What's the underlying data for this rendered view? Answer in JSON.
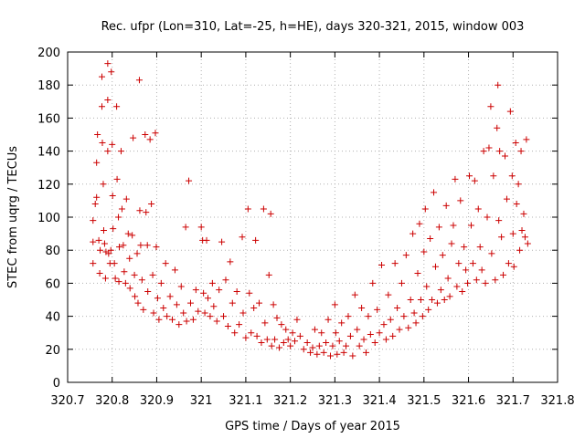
{
  "chart_data": {
    "type": "scatter",
    "title": "Rec. ufpr (Lon=310, Lat=-25, h=HE), days 320-321, 2015, window 003",
    "xlabel": "GPS time / Days of year 2015",
    "ylabel": "STEC from uqrg / TECUs",
    "xlim": [
      320.7,
      321.8
    ],
    "ylim": [
      0,
      200
    ],
    "x_ticks": [
      "320.7",
      "320.8",
      "320.9",
      "321",
      "321.1",
      "321.2",
      "321.3",
      "321.4",
      "321.5",
      "321.6",
      "321.7",
      "321.8"
    ],
    "x_tick_values": [
      320.7,
      320.8,
      320.9,
      321.0,
      321.1,
      321.2,
      321.3,
      321.4,
      321.5,
      321.6,
      321.7,
      321.8
    ],
    "y_ticks": [
      "0",
      "20",
      "40",
      "60",
      "80",
      "100",
      "120",
      "140",
      "160",
      "180",
      "200"
    ],
    "y_tick_values": [
      0,
      20,
      40,
      60,
      80,
      100,
      120,
      140,
      160,
      180,
      200
    ],
    "grid": true,
    "marker": "plus",
    "color": "#cc0000",
    "series": [
      {
        "points": [
          [
            320.757,
            72
          ],
          [
            320.757,
            85
          ],
          [
            320.757,
            98
          ],
          [
            320.762,
            108
          ],
          [
            320.765,
            112
          ],
          [
            320.765,
            133
          ],
          [
            320.767,
            150
          ],
          [
            320.77,
            86
          ],
          [
            320.772,
            66
          ],
          [
            320.773,
            80
          ],
          [
            320.777,
            167
          ],
          [
            320.777,
            185
          ],
          [
            320.778,
            145
          ],
          [
            320.78,
            120
          ],
          [
            320.781,
            92
          ],
          [
            320.783,
            84
          ],
          [
            320.785,
            63
          ],
          [
            320.786,
            79
          ],
          [
            320.79,
            193
          ],
          [
            320.79,
            171
          ],
          [
            320.79,
            140
          ],
          [
            320.792,
            78
          ],
          [
            320.795,
            72
          ],
          [
            320.797,
            80
          ],
          [
            320.798,
            188
          ],
          [
            320.8,
            144
          ],
          [
            320.801,
            113
          ],
          [
            320.802,
            93
          ],
          [
            320.805,
            72
          ],
          [
            320.807,
            63
          ],
          [
            320.81,
            167
          ],
          [
            320.811,
            123
          ],
          [
            320.814,
            100
          ],
          [
            320.815,
            61
          ],
          [
            320.816,
            82
          ],
          [
            320.82,
            140
          ],
          [
            320.822,
            105
          ],
          [
            320.825,
            83
          ],
          [
            320.827,
            67
          ],
          [
            320.83,
            60
          ],
          [
            320.832,
            111
          ],
          [
            320.836,
            90
          ],
          [
            320.839,
            75
          ],
          [
            320.84,
            57
          ],
          [
            320.845,
            89
          ],
          [
            320.847,
            148
          ],
          [
            320.85,
            65
          ],
          [
            320.851,
            52
          ],
          [
            320.856,
            78
          ],
          [
            320.858,
            48
          ],
          [
            320.861,
            183
          ],
          [
            320.862,
            104
          ],
          [
            320.864,
            83
          ],
          [
            320.867,
            62
          ],
          [
            320.87,
            44
          ],
          [
            320.874,
            150
          ],
          [
            320.876,
            103
          ],
          [
            320.879,
            83
          ],
          [
            320.88,
            55
          ],
          [
            320.885,
            147
          ],
          [
            320.888,
            108
          ],
          [
            320.891,
            65
          ],
          [
            320.893,
            42
          ],
          [
            320.897,
            151
          ],
          [
            320.899,
            82
          ],
          [
            320.902,
            51
          ],
          [
            320.905,
            38
          ],
          [
            320.91,
            60
          ],
          [
            320.915,
            45
          ],
          [
            320.92,
            72
          ],
          [
            320.923,
            40
          ],
          [
            320.93,
            52
          ],
          [
            320.935,
            38
          ],
          [
            320.941,
            68
          ],
          [
            320.945,
            47
          ],
          [
            320.95,
            35
          ],
          [
            320.955,
            58
          ],
          [
            320.96,
            42
          ],
          [
            320.965,
            94
          ],
          [
            320.967,
            37
          ],
          [
            320.972,
            122
          ],
          [
            320.976,
            48
          ],
          [
            320.982,
            38
          ],
          [
            320.988,
            56
          ],
          [
            320.993,
            43
          ],
          [
            321.0,
            94
          ],
          [
            321.003,
            86
          ],
          [
            321.005,
            54
          ],
          [
            321.008,
            42
          ],
          [
            321.012,
            86
          ],
          [
            321.015,
            51
          ],
          [
            321.02,
            40
          ],
          [
            321.025,
            60
          ],
          [
            321.028,
            46
          ],
          [
            321.035,
            37
          ],
          [
            321.04,
            56
          ],
          [
            321.046,
            85
          ],
          [
            321.05,
            40
          ],
          [
            321.055,
            62
          ],
          [
            321.06,
            34
          ],
          [
            321.065,
            73
          ],
          [
            321.07,
            48
          ],
          [
            321.075,
            30
          ],
          [
            321.08,
            55
          ],
          [
            321.085,
            35
          ],
          [
            321.092,
            88
          ],
          [
            321.094,
            42
          ],
          [
            321.1,
            27
          ],
          [
            321.105,
            105
          ],
          [
            321.108,
            54
          ],
          [
            321.112,
            30
          ],
          [
            321.118,
            45
          ],
          [
            321.122,
            86
          ],
          [
            321.125,
            28
          ],
          [
            321.13,
            48
          ],
          [
            321.135,
            24
          ],
          [
            321.14,
            105
          ],
          [
            321.143,
            36
          ],
          [
            321.148,
            26
          ],
          [
            321.152,
            65
          ],
          [
            321.156,
            102
          ],
          [
            321.158,
            22
          ],
          [
            321.162,
            47
          ],
          [
            321.165,
            26
          ],
          [
            321.17,
            39
          ],
          [
            321.175,
            21
          ],
          [
            321.18,
            35
          ],
          [
            321.185,
            24
          ],
          [
            321.19,
            32
          ],
          [
            321.195,
            26
          ],
          [
            321.2,
            22
          ],
          [
            321.205,
            30
          ],
          [
            321.21,
            25
          ],
          [
            321.215,
            38
          ],
          [
            321.222,
            28
          ],
          [
            321.23,
            20
          ],
          [
            321.238,
            24
          ],
          [
            321.245,
            18
          ],
          [
            321.25,
            21
          ],
          [
            321.255,
            32
          ],
          [
            321.26,
            17
          ],
          [
            321.265,
            22
          ],
          [
            321.27,
            30
          ],
          [
            321.275,
            18
          ],
          [
            321.28,
            24
          ],
          [
            321.285,
            38
          ],
          [
            321.29,
            16
          ],
          [
            321.295,
            22
          ],
          [
            321.3,
            47
          ],
          [
            321.302,
            30
          ],
          [
            321.305,
            17
          ],
          [
            321.31,
            25
          ],
          [
            321.315,
            36
          ],
          [
            321.32,
            18
          ],
          [
            321.325,
            22
          ],
          [
            321.33,
            40
          ],
          [
            321.335,
            28
          ],
          [
            321.34,
            16
          ],
          [
            321.345,
            53
          ],
          [
            321.35,
            32
          ],
          [
            321.355,
            22
          ],
          [
            321.36,
            45
          ],
          [
            321.365,
            26
          ],
          [
            321.37,
            18
          ],
          [
            321.375,
            40
          ],
          [
            321.38,
            29
          ],
          [
            321.385,
            60
          ],
          [
            321.39,
            24
          ],
          [
            321.395,
            44
          ],
          [
            321.4,
            30
          ],
          [
            321.405,
            71
          ],
          [
            321.41,
            35
          ],
          [
            321.415,
            26
          ],
          [
            321.42,
            53
          ],
          [
            321.425,
            38
          ],
          [
            321.43,
            28
          ],
          [
            321.435,
            72
          ],
          [
            321.44,
            45
          ],
          [
            321.445,
            32
          ],
          [
            321.45,
            60
          ],
          [
            321.455,
            40
          ],
          [
            321.46,
            77
          ],
          [
            321.465,
            33
          ],
          [
            321.47,
            50
          ],
          [
            321.475,
            90
          ],
          [
            321.478,
            42
          ],
          [
            321.482,
            36
          ],
          [
            321.486,
            66
          ],
          [
            321.49,
            96
          ],
          [
            321.493,
            50
          ],
          [
            321.497,
            40
          ],
          [
            321.5,
            79
          ],
          [
            321.503,
            105
          ],
          [
            321.506,
            58
          ],
          [
            321.51,
            44
          ],
          [
            321.514,
            87
          ],
          [
            321.518,
            50
          ],
          [
            321.522,
            115
          ],
          [
            321.526,
            70
          ],
          [
            321.53,
            48
          ],
          [
            321.534,
            94
          ],
          [
            321.538,
            56
          ],
          [
            321.542,
            77
          ],
          [
            321.546,
            50
          ],
          [
            321.55,
            107
          ],
          [
            321.554,
            63
          ],
          [
            321.558,
            52
          ],
          [
            321.562,
            84
          ],
          [
            321.566,
            95
          ],
          [
            321.57,
            123
          ],
          [
            321.574,
            58
          ],
          [
            321.578,
            72
          ],
          [
            321.582,
            110
          ],
          [
            321.586,
            55
          ],
          [
            321.59,
            82
          ],
          [
            321.594,
            68
          ],
          [
            321.598,
            60
          ],
          [
            321.602,
            125
          ],
          [
            321.606,
            95
          ],
          [
            321.61,
            72
          ],
          [
            321.614,
            122
          ],
          [
            321.618,
            62
          ],
          [
            321.622,
            105
          ],
          [
            321.626,
            82
          ],
          [
            321.63,
            68
          ],
          [
            321.634,
            140
          ],
          [
            321.638,
            60
          ],
          [
            321.642,
            100
          ],
          [
            321.646,
            142
          ],
          [
            321.65,
            167
          ],
          [
            321.652,
            78
          ],
          [
            321.656,
            125
          ],
          [
            321.66,
            62
          ],
          [
            321.664,
            154
          ],
          [
            321.666,
            180
          ],
          [
            321.668,
            98
          ],
          [
            321.67,
            140
          ],
          [
            321.674,
            88
          ],
          [
            321.678,
            65
          ],
          [
            321.682,
            137
          ],
          [
            321.686,
            111
          ],
          [
            321.69,
            72
          ],
          [
            321.694,
            164
          ],
          [
            321.698,
            125
          ],
          [
            321.7,
            90
          ],
          [
            321.702,
            70
          ],
          [
            321.706,
            145
          ],
          [
            321.708,
            108
          ],
          [
            321.712,
            120
          ],
          [
            321.715,
            80
          ],
          [
            321.718,
            140
          ],
          [
            321.72,
            92
          ],
          [
            321.724,
            102
          ],
          [
            321.727,
            88
          ],
          [
            321.73,
            147
          ],
          [
            321.733,
            84
          ]
        ]
      }
    ]
  }
}
